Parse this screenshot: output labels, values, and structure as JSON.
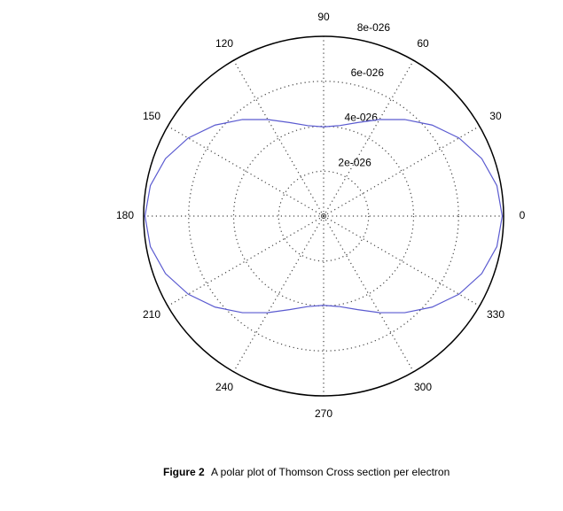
{
  "chart_data": {
    "type": "polar",
    "theta": [
      0,
      10,
      20,
      30,
      40,
      50,
      60,
      70,
      80,
      90,
      100,
      110,
      120,
      130,
      140,
      150,
      160,
      170,
      180,
      190,
      200,
      210,
      220,
      230,
      240,
      250,
      260,
      270,
      280,
      290,
      300,
      310,
      320,
      330,
      340,
      350,
      360
    ],
    "values": [
      7.94e-26,
      7.82e-26,
      7.48e-26,
      6.95e-26,
      6.3e-26,
      5.61e-26,
      4.96e-26,
      4.43e-26,
      4.09e-26,
      3.97e-26,
      4.09e-26,
      4.43e-26,
      4.96e-26,
      5.61e-26,
      6.3e-26,
      6.95e-26,
      7.48e-26,
      7.82e-26,
      7.94e-26,
      7.82e-26,
      7.48e-26,
      6.95e-26,
      6.3e-26,
      5.61e-26,
      4.96e-26,
      4.43e-26,
      4.09e-26,
      3.97e-26,
      4.09e-26,
      4.43e-26,
      4.96e-26,
      5.61e-26,
      6.3e-26,
      6.95e-26,
      7.48e-26,
      7.82e-26,
      7.94e-26
    ],
    "color": "#5a5ad0",
    "rlim": [
      0,
      8e-26
    ],
    "rticks": [
      {
        "value": 2e-26,
        "label": "2e-026"
      },
      {
        "value": 4e-26,
        "label": "4e-026"
      },
      {
        "value": 6e-26,
        "label": "6e-026"
      },
      {
        "value": 8e-26,
        "label": "8e-026"
      }
    ],
    "thetaticks": [
      0,
      30,
      60,
      90,
      120,
      150,
      180,
      210,
      240,
      270,
      300,
      330
    ],
    "grid": true,
    "caption_label": "Figure 2",
    "caption": "A polar plot of Thomson Cross section per electron"
  }
}
